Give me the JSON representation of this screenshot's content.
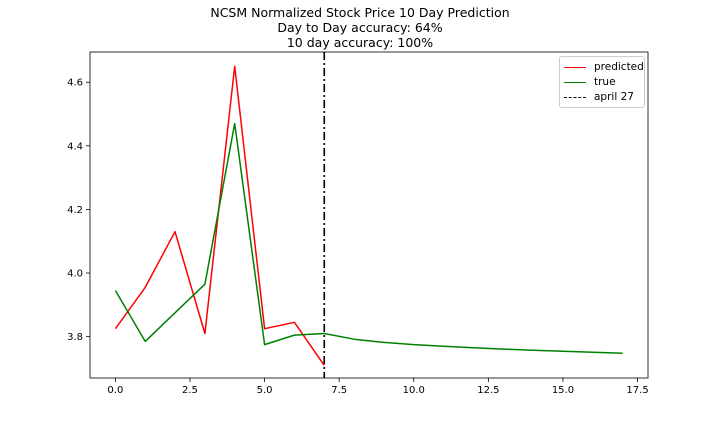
{
  "chart_data": {
    "type": "line",
    "title_lines": [
      "NCSM Normalized Stock Price 10 Day Prediction",
      "Day to Day accuracy: 64%",
      "10 day accuracy: 100%"
    ],
    "xlim": [
      -0.85,
      17.85
    ],
    "ylim": [
      3.67,
      4.695
    ],
    "x_ticks": [
      0.0,
      2.5,
      5.0,
      7.5,
      10.0,
      12.5,
      15.0,
      17.5
    ],
    "x_tick_labels": [
      "0.0",
      "2.5",
      "5.0",
      "7.5",
      "10.0",
      "12.5",
      "15.0",
      "17.5"
    ],
    "y_ticks": [
      3.8,
      4.0,
      4.2,
      4.4,
      4.6
    ],
    "y_tick_labels": [
      "3.8",
      "4.0",
      "4.2",
      "4.4",
      "4.6"
    ],
    "series": [
      {
        "name": "predicted",
        "color": "#ff0000",
        "x": [
          0,
          1,
          2,
          3,
          4,
          5,
          6,
          7
        ],
        "values": [
          3.825,
          3.955,
          4.13,
          3.81,
          4.65,
          3.825,
          3.845,
          3.71
        ]
      },
      {
        "name": "true",
        "color": "#008000",
        "x": [
          0,
          1,
          2,
          3,
          4,
          5,
          6,
          7,
          8,
          9,
          10,
          11,
          12,
          13,
          14,
          15,
          16,
          17
        ],
        "values": [
          3.945,
          3.785,
          3.875,
          3.965,
          4.47,
          3.775,
          3.805,
          3.81,
          3.792,
          3.782,
          3.775,
          3.77,
          3.765,
          3.761,
          3.757,
          3.754,
          3.751,
          3.748
        ]
      }
    ],
    "vline": {
      "name": "april 27",
      "x": 7,
      "color": "#000000",
      "style": "dashdot"
    },
    "legend_position": "upper-right",
    "grid": false
  }
}
